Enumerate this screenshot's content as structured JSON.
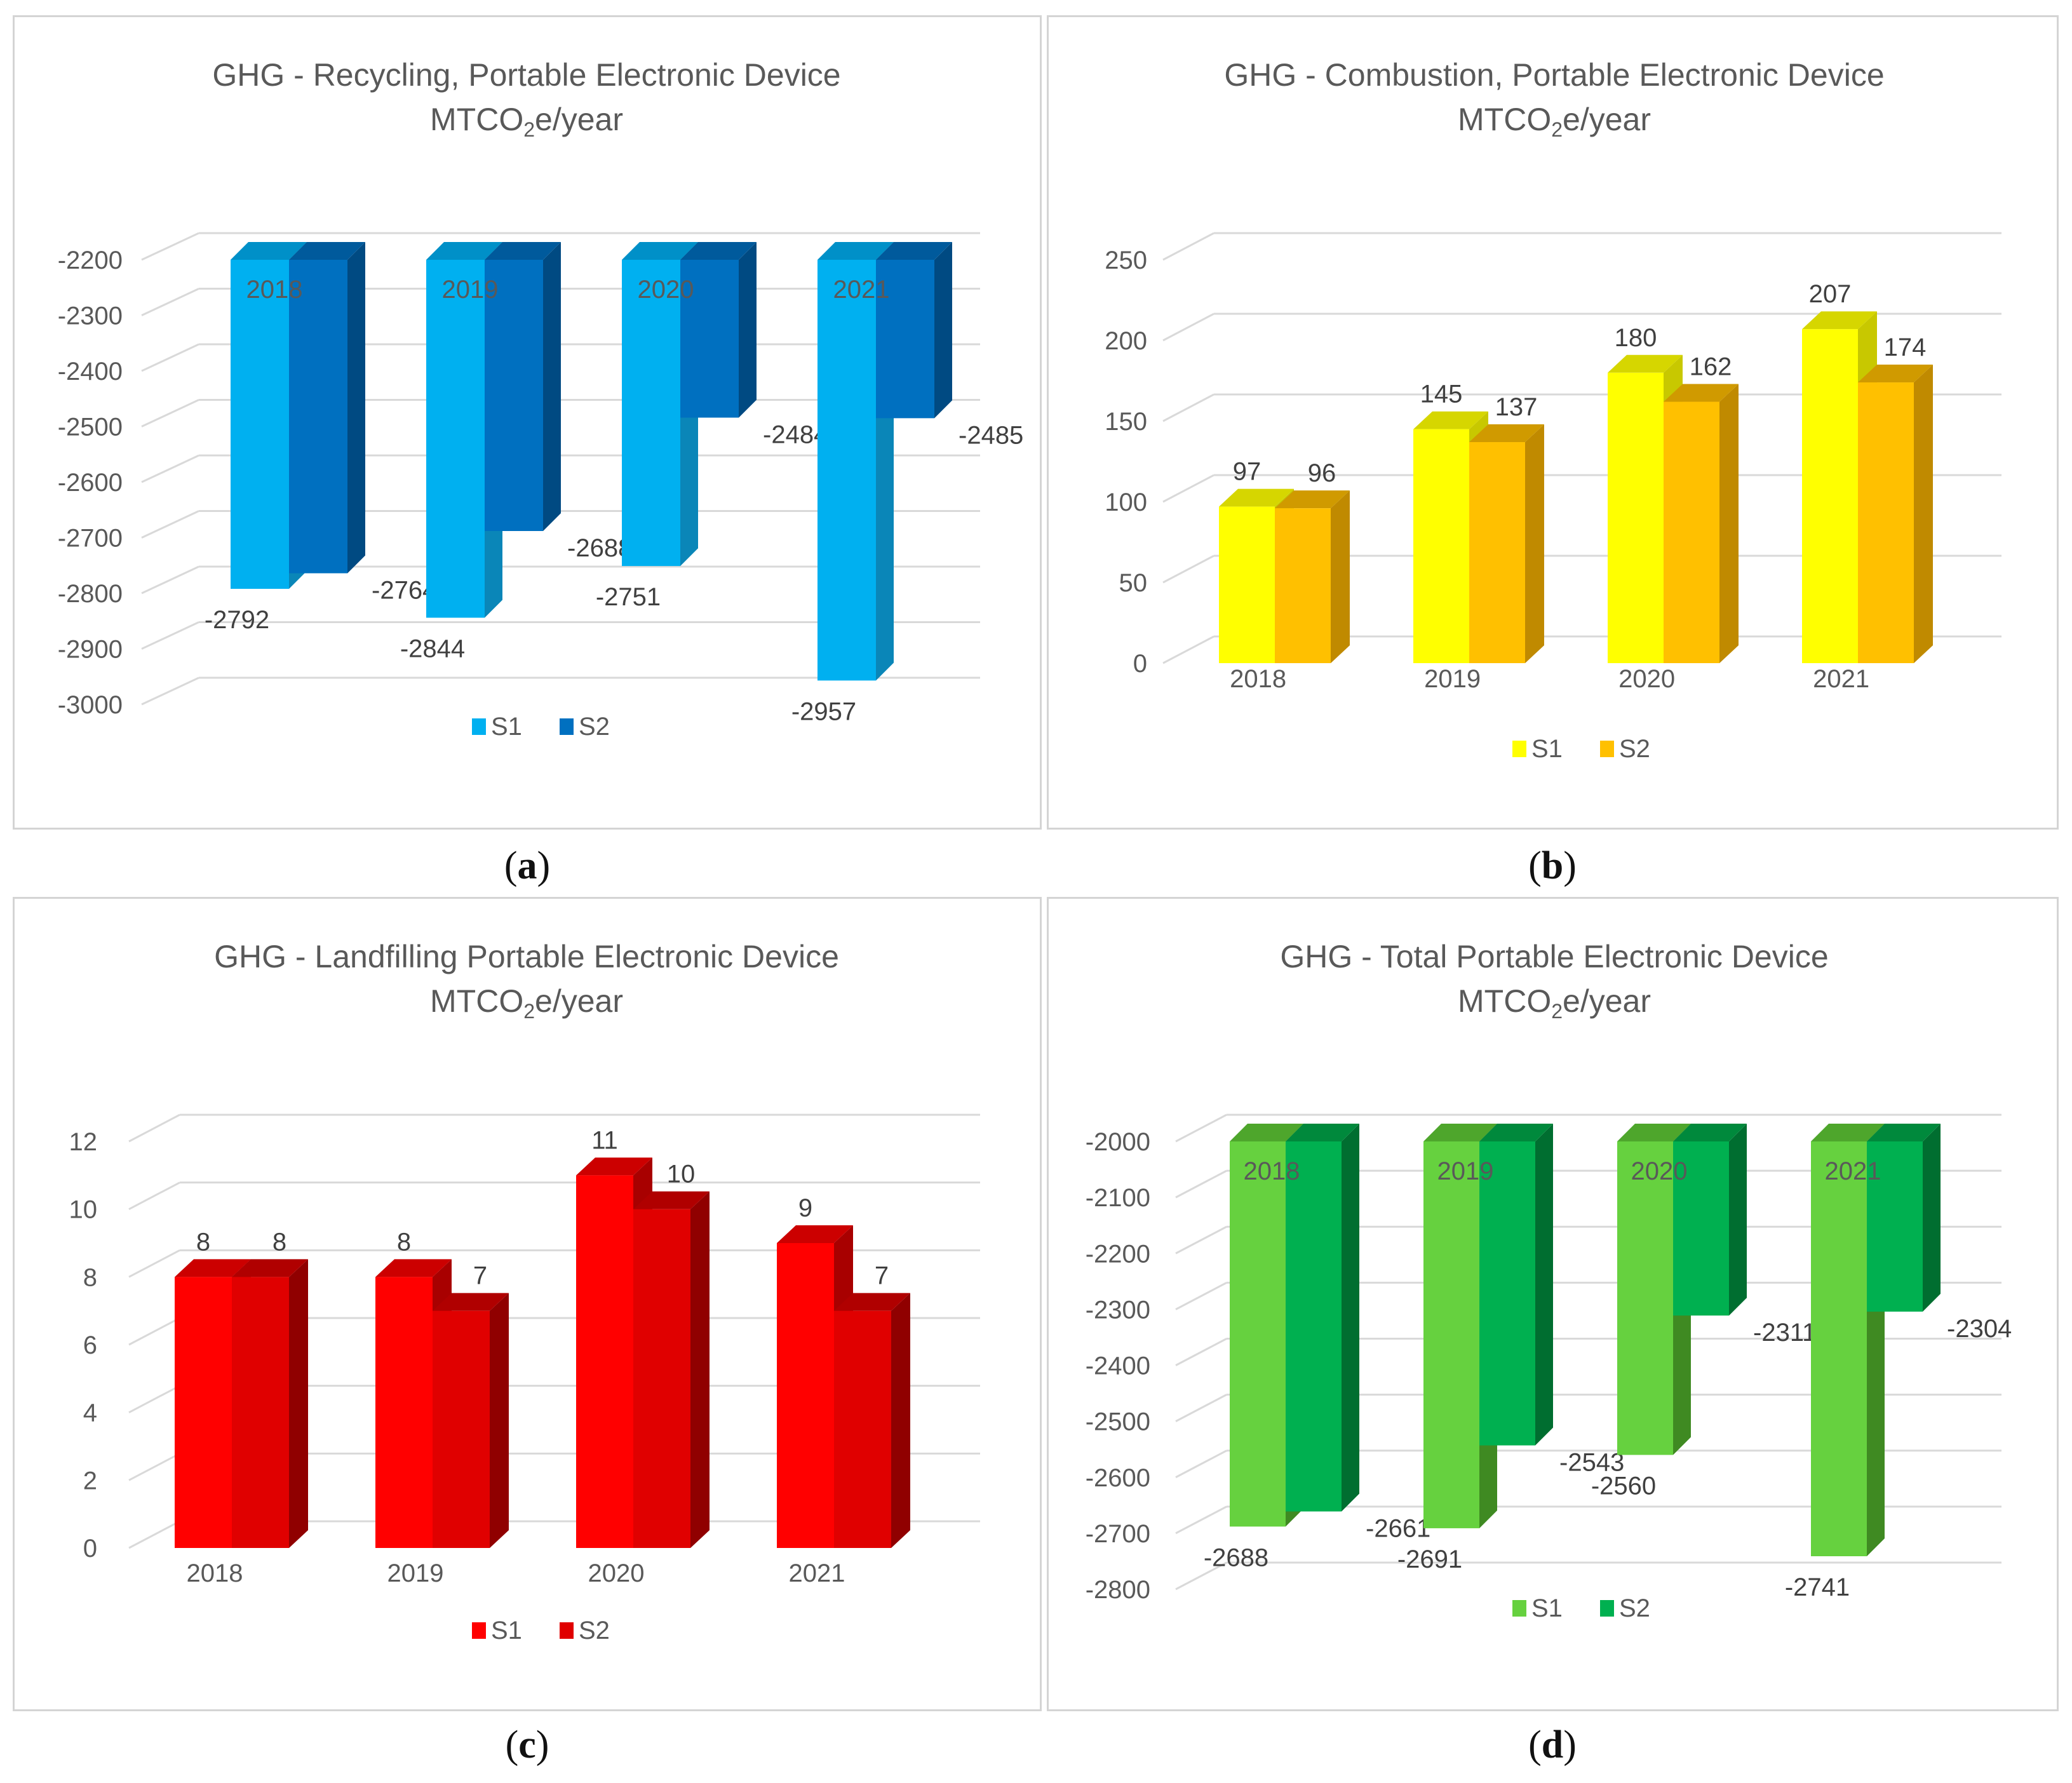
{
  "captions": {
    "a": {
      "open": "(",
      "letter": "a",
      "close": ")"
    },
    "b": {
      "open": "(",
      "letter": "b",
      "close": ")"
    },
    "c": {
      "open": "(",
      "letter": "c",
      "close": ")"
    },
    "d": {
      "open": "(",
      "letter": "d",
      "close": ")"
    }
  },
  "chart_data": [
    {
      "id": "a",
      "type": "bar",
      "title": "GHG  - Recycling, Portable Electronic Device",
      "subtitle": {
        "pre": "MTCO",
        "sub": "2",
        "post": "e/year"
      },
      "categories": [
        "2018",
        "2019",
        "2020",
        "2021"
      ],
      "category_labels_inside": true,
      "series": [
        {
          "name": "S1",
          "values": [
            -2792,
            -2844,
            -2751,
            -2957
          ],
          "labels": [
            "-2792",
            "-2844",
            "-2751",
            "-2957"
          ],
          "color": "#00b0f0",
          "side": "#0a86b8",
          "top": "#0090c8"
        },
        {
          "name": "S2",
          "values": [
            -2764,
            -2688,
            -2484,
            -2485
          ],
          "labels": [
            "-2764",
            "-2688",
            "-2484",
            "-2485"
          ],
          "color": "#0070c0",
          "side": "#004a82",
          "top": "#005a9c"
        }
      ],
      "ylim": [
        -3000,
        -2200
      ],
      "yticks": [
        "-2200",
        "-2300",
        "-2400",
        "-2500",
        "-2600",
        "-2700",
        "-2800",
        "-2900",
        "-3000"
      ],
      "ytick_values": [
        -2200,
        -2300,
        -2400,
        -2500,
        -2600,
        -2700,
        -2800,
        -2900,
        -3000
      ],
      "baseline": -2200,
      "legend": [
        "S1",
        "S2"
      ],
      "xlabel": "",
      "ylabel": ""
    },
    {
      "id": "b",
      "type": "bar",
      "title": "GHG  - Combustion, Portable Electronic Device",
      "subtitle": {
        "pre": "MTCO",
        "sub": "2",
        "post": "e/year"
      },
      "categories": [
        "2018",
        "2019",
        "2020",
        "2021"
      ],
      "category_labels_inside": false,
      "series": [
        {
          "name": "S1",
          "values": [
            97,
            145,
            180,
            207
          ],
          "labels": [
            "97",
            "145",
            "180",
            "207"
          ],
          "color": "#ffff00",
          "side": "#c8c800",
          "top": "#d6d600"
        },
        {
          "name": "S2",
          "values": [
            96,
            137,
            162,
            174
          ],
          "labels": [
            "96",
            "137",
            "162",
            "174"
          ],
          "color": "#ffc000",
          "side": "#c08a00",
          "top": "#d09a00"
        }
      ],
      "ylim": [
        0,
        250
      ],
      "yticks": [
        "0",
        "50",
        "100",
        "150",
        "200",
        "250"
      ],
      "ytick_values": [
        0,
        50,
        100,
        150,
        200,
        250
      ],
      "baseline": 0,
      "legend": [
        "S1",
        "S2"
      ],
      "xlabel": "",
      "ylabel": ""
    },
    {
      "id": "c",
      "type": "bar",
      "title": "GHG  - Landfilling Portable Electronic Device",
      "subtitle": {
        "pre": "MTCO",
        "sub": "2",
        "post": "e/year"
      },
      "categories": [
        "2018",
        "2019",
        "2020",
        "2021"
      ],
      "category_labels_inside": false,
      "series": [
        {
          "name": "S1",
          "values": [
            8,
            8,
            11,
            9
          ],
          "labels": [
            "8",
            "8",
            "11",
            "9"
          ],
          "color": "#ff0000",
          "side": "#a80000",
          "top": "#cc0000"
        },
        {
          "name": "S2",
          "values": [
            8,
            7,
            10,
            7
          ],
          "labels": [
            "8",
            "7",
            "10",
            "7"
          ],
          "color": "#e00000",
          "side": "#900000",
          "top": "#b00000"
        }
      ],
      "ylim": [
        0,
        12
      ],
      "yticks": [
        "0",
        "2",
        "4",
        "6",
        "8",
        "10",
        "12"
      ],
      "ytick_values": [
        0,
        2,
        4,
        6,
        8,
        10,
        12
      ],
      "baseline": 0,
      "legend": [
        "S1",
        "S2"
      ],
      "xlabel": "",
      "ylabel": ""
    },
    {
      "id": "d",
      "type": "bar",
      "title": "GHG  - Total Portable Electronic Device",
      "subtitle": {
        "pre": "MTCO",
        "sub": "2",
        "post": "e/year"
      },
      "categories": [
        "2018",
        "2019",
        "2020",
        "2021"
      ],
      "category_labels_inside": true,
      "series": [
        {
          "name": "S1",
          "values": [
            -2688,
            -2691,
            -2560,
            -2741
          ],
          "labels": [
            "-2688",
            "-2691",
            "-2560",
            "-2741"
          ],
          "color": "#66d13f",
          "side": "#3f8a22",
          "top": "#4ea62c"
        },
        {
          "name": "S2",
          "values": [
            -2661,
            -2543,
            -2311,
            -2304
          ],
          "labels": [
            "-2661",
            "-2543",
            "-2311",
            "-2304"
          ],
          "color": "#00b050",
          "side": "#006e30",
          "top": "#00893c"
        }
      ],
      "ylim": [
        -2800,
        -2000
      ],
      "yticks": [
        "-2000",
        "-2100",
        "-2200",
        "-2300",
        "-2400",
        "-2500",
        "-2600",
        "-2700",
        "-2800"
      ],
      "ytick_values": [
        -2000,
        -2100,
        -2200,
        -2300,
        -2400,
        -2500,
        -2600,
        -2700,
        -2800
      ],
      "baseline": -2000,
      "legend": [
        "S1",
        "S2"
      ],
      "xlabel": "",
      "ylabel": ""
    }
  ]
}
